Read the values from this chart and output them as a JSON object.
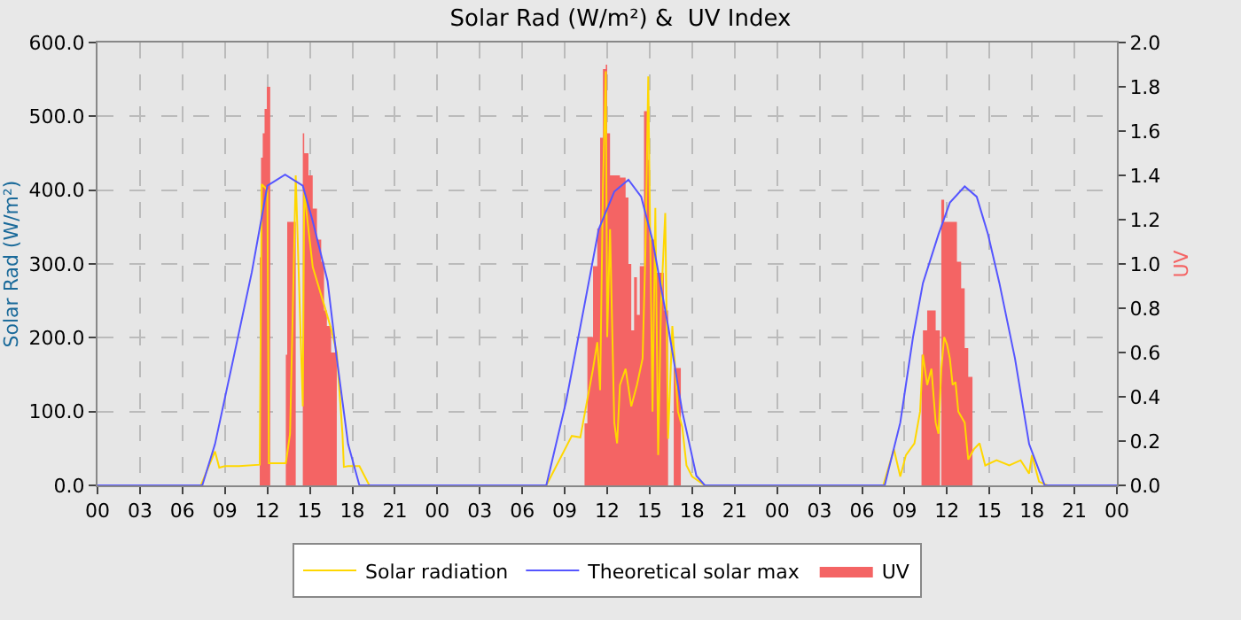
{
  "chart_data": {
    "type": "line",
    "title": "Solar Rad (W/m²) &  UV Index",
    "ylabel": "Solar Rad (W/m²)",
    "y2label": "UV",
    "xlim": [
      0,
      72
    ],
    "xticks": [
      {
        "value": 0,
        "label": "00"
      },
      {
        "value": 3,
        "label": "03"
      },
      {
        "value": 6,
        "label": "06"
      },
      {
        "value": 9,
        "label": "09"
      },
      {
        "value": 12,
        "label": "12"
      },
      {
        "value": 15,
        "label": "15"
      },
      {
        "value": 18,
        "label": "18"
      },
      {
        "value": 21,
        "label": "21"
      },
      {
        "value": 24,
        "label": "00"
      },
      {
        "value": 27,
        "label": "03"
      },
      {
        "value": 30,
        "label": "06"
      },
      {
        "value": 33,
        "label": "09"
      },
      {
        "value": 36,
        "label": "12"
      },
      {
        "value": 39,
        "label": "15"
      },
      {
        "value": 42,
        "label": "18"
      },
      {
        "value": 45,
        "label": "21"
      },
      {
        "value": 48,
        "label": "00"
      },
      {
        "value": 51,
        "label": "03"
      },
      {
        "value": 54,
        "label": "06"
      },
      {
        "value": 57,
        "label": "09"
      },
      {
        "value": 60,
        "label": "12"
      },
      {
        "value": 63,
        "label": "15"
      },
      {
        "value": 66,
        "label": "18"
      },
      {
        "value": 69,
        "label": "21"
      },
      {
        "value": 72,
        "label": "00"
      }
    ],
    "ylim": [
      0,
      600
    ],
    "yticks": [
      {
        "value": 0,
        "label": "0.0"
      },
      {
        "value": 100,
        "label": "100.0"
      },
      {
        "value": 200,
        "label": "200.0"
      },
      {
        "value": 300,
        "label": "300.0"
      },
      {
        "value": 400,
        "label": "400.0"
      },
      {
        "value": 500,
        "label": "500.0"
      },
      {
        "value": 600,
        "label": "600.0"
      }
    ],
    "y2lim": [
      0,
      2
    ],
    "y2ticks": [
      {
        "value": 0,
        "label": "0.0"
      },
      {
        "value": 0.2,
        "label": "0.2"
      },
      {
        "value": 0.4,
        "label": "0.4"
      },
      {
        "value": 0.6,
        "label": "0.6"
      },
      {
        "value": 0.8,
        "label": "0.8"
      },
      {
        "value": 1,
        "label": "1.0"
      },
      {
        "value": 1.2,
        "label": "1.2"
      },
      {
        "value": 1.4,
        "label": "1.4"
      },
      {
        "value": 1.6,
        "label": "1.6"
      },
      {
        "value": 1.8,
        "label": "1.8"
      },
      {
        "value": 2,
        "label": "2.0"
      }
    ],
    "grid": true,
    "legend": "bottom",
    "series": [
      {
        "name": "Solar radiation",
        "color": "#ffd700",
        "x": [
          0,
          7.3,
          8.3,
          8.6,
          9.0,
          10.0,
          11.46,
          11.6,
          12.0,
          12.1,
          13.3,
          13.6,
          14.0,
          14.5,
          14.6,
          15.0,
          15.2,
          16.0,
          16.5,
          16.9,
          17.3,
          17.4,
          17.7,
          18.5,
          19.2,
          31.7,
          33.5,
          34.1,
          35.0,
          35.3,
          35.5,
          35.7,
          35.9,
          36.0,
          36.2,
          36.5,
          36.7,
          36.9,
          37.3,
          37.7,
          38.1,
          38.5,
          38.7,
          38.9,
          39.0,
          39.2,
          39.4,
          39.6,
          39.8,
          40.1,
          40.3,
          40.6,
          40.8,
          41.0,
          41.3,
          41.6,
          42.0,
          42.9,
          55.5,
          56.25,
          56.7,
          57.1,
          57.7,
          58.1,
          58.3,
          58.6,
          58.9,
          59.2,
          59.4,
          59.6,
          59.8,
          60.0,
          60.2,
          60.4,
          60.6,
          60.8,
          61.25,
          61.5,
          61.9,
          62.3,
          62.7,
          63.5,
          64.4,
          65.2,
          65.8,
          66.0,
          66.5,
          67.1,
          72
        ],
        "values": [
          0,
          0,
          46,
          24,
          26,
          26,
          28,
          408,
          400,
          30,
          30,
          70,
          420,
          107,
          398,
          330,
          296,
          245,
          212,
          180,
          70,
          25,
          26,
          26,
          0,
          0,
          67,
          65,
          158,
          194,
          129,
          406,
          561,
          201,
          347,
          85,
          57,
          136,
          158,
          107,
          136,
          172,
          318,
          554,
          391,
          100,
          376,
          41,
          245,
          369,
          63,
          216,
          158,
          100,
          79,
          27,
          12,
          0,
          0,
          49,
          12,
          41,
          57,
          100,
          177,
          136,
          158,
          85,
          70,
          158,
          201,
          191,
          172,
          136,
          140,
          100,
          85,
          35,
          49,
          57,
          27,
          34,
          27,
          34,
          16,
          41,
          5,
          0,
          0
        ]
      },
      {
        "name": "Theoretical solar max",
        "color": "#5555ff",
        "x": [
          0,
          7.4,
          8.3,
          9.6,
          10.9,
          12.0,
          13.25,
          14.5,
          15.2,
          16.25,
          16.9,
          17.7,
          18.5,
          31.7,
          33.1,
          34.4,
          35.4,
          36.5,
          37.5,
          38.4,
          39.2,
          40.3,
          41.3,
          42.3,
          42.9,
          55.6,
          56.7,
          57.6,
          58.3,
          59.4,
          60.2,
          61.25,
          62.1,
          62.9,
          63.7,
          64.8,
          65.8,
          66.9,
          72
        ],
        "values": [
          0,
          0,
          56,
          172,
          289,
          406,
          421,
          406,
          358,
          277,
          172,
          56,
          0,
          0,
          114,
          245,
          347,
          398,
          414,
          391,
          332,
          216,
          100,
          13,
          0,
          0,
          85,
          201,
          274,
          340,
          383,
          405,
          391,
          340,
          274,
          172,
          56,
          0,
          0
        ]
      },
      {
        "name": "UV",
        "type": "area",
        "axis": "y2",
        "color": "#f46464",
        "x": [
          0,
          11.4,
          11.46,
          11.55,
          11.67,
          11.8,
          11.96,
          12.15,
          12.2,
          13.25,
          13.3,
          13.4,
          13.9,
          14.0,
          14.3,
          14.5,
          14.6,
          14.9,
          15.2,
          15.5,
          15.8,
          16.0,
          16.2,
          16.5,
          16.8,
          16.9,
          34.3,
          34.4,
          34.6,
          35.0,
          35.3,
          35.5,
          35.7,
          35.9,
          36.0,
          36.2,
          36.9,
          37.3,
          37.5,
          37.7,
          37.9,
          38.1,
          38.3,
          38.6,
          38.9,
          39.0,
          39.4,
          40.0,
          40.3,
          40.7,
          41.2,
          58.1,
          58.2,
          58.3,
          58.6,
          59.2,
          59.5,
          59.6,
          59.8,
          60.4,
          60.7,
          61.0,
          61.25,
          61.5,
          61.8,
          72
        ],
        "values": [
          0,
          0,
          1.03,
          1.48,
          1.59,
          1.7,
          1.8,
          1.8,
          0,
          0,
          0.59,
          1.19,
          1.19,
          0,
          0,
          1.59,
          1.5,
          1.4,
          1.25,
          1.11,
          1.01,
          0.79,
          0.72,
          0.6,
          0.6,
          0,
          0,
          0.28,
          0.67,
          0.99,
          1.16,
          1.57,
          1.88,
          1.9,
          1.59,
          1.4,
          1.39,
          1.3,
          1,
          0.7,
          0.94,
          0.77,
          0.99,
          1.69,
          1.47,
          1.11,
          0.96,
          0.79,
          0,
          0.53,
          0,
          0,
          0.59,
          0.7,
          0.79,
          0.7,
          0,
          1.29,
          1.19,
          1.19,
          1.01,
          0.89,
          0.62,
          0.49,
          0,
          0
        ]
      }
    ]
  }
}
